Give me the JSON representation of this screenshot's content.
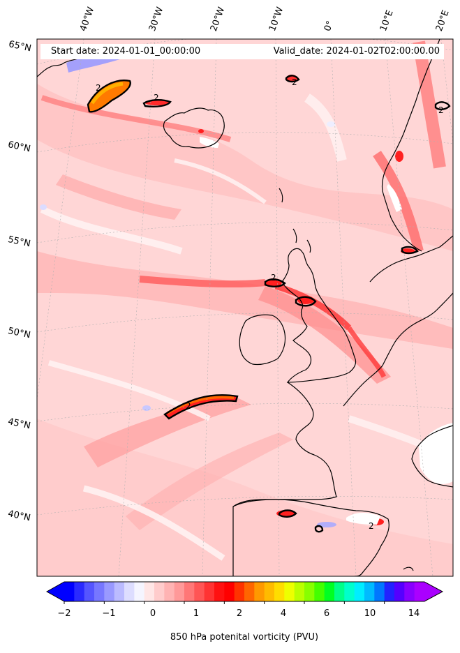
{
  "header": {
    "start_date": "Start date: 2024-01-01_00:00:00",
    "valid_date": "Valid_date: 2024-01-02T02:00:00.00"
  },
  "lat_labels": [
    "65°N",
    "60°N",
    "55°N",
    "50°N",
    "45°N",
    "40°N"
  ],
  "lon_labels": [
    "40°W",
    "30°W",
    "20°W",
    "10°W",
    "0°",
    "10°E",
    "20°E"
  ],
  "contour_label": "2",
  "colorbar": {
    "title": "850 hPa potenital vorticity (PVU)",
    "tick_labels": [
      "−2",
      "−1",
      "0",
      "1",
      "2",
      "4",
      "6",
      "10",
      "14"
    ],
    "colors": [
      "#0000ff",
      "#2a2aff",
      "#5555ff",
      "#7777ff",
      "#9999ff",
      "#bbbbff",
      "#ddddff",
      "#f5f5ff",
      "#ffe6e6",
      "#ffcccc",
      "#ffb3b3",
      "#ff9999",
      "#ff7777",
      "#ff5555",
      "#ff3333",
      "#ff1111",
      "#ff0000",
      "#ff3300",
      "#ff6600",
      "#ff9900",
      "#ffbb00",
      "#ffdd00",
      "#eeff00",
      "#bbff00",
      "#88ff00",
      "#44ff00",
      "#00ff22",
      "#00ff88",
      "#00ffcc",
      "#00eeff",
      "#00bbff",
      "#0077ff",
      "#2222ff",
      "#5500ff",
      "#8800ff",
      "#aa00ff"
    ],
    "under_color": "#0000ff",
    "over_color": "#aa00ff"
  }
}
